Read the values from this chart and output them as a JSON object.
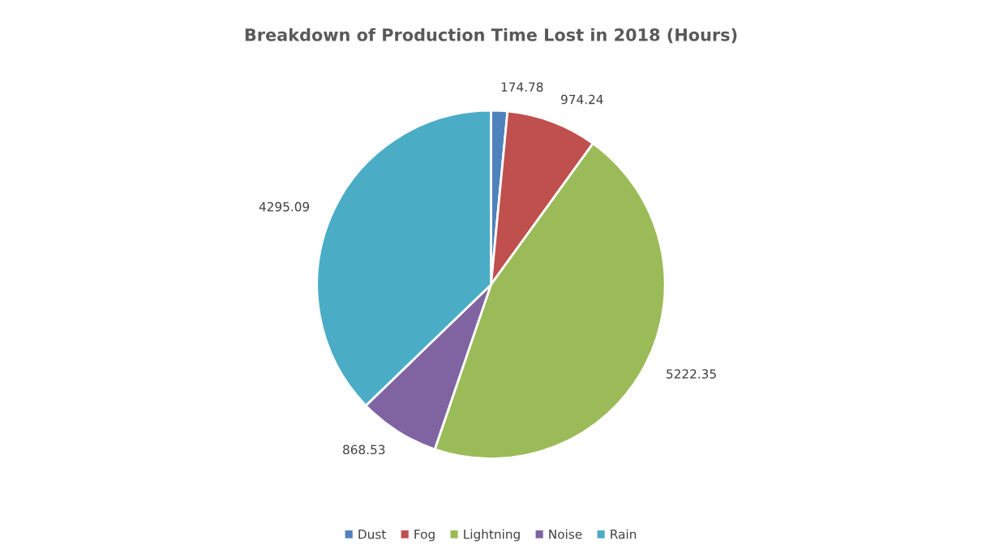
{
  "chart_data": {
    "type": "pie",
    "title": "Breakdown of Production Time Lost in 2018 (Hours)",
    "categories": [
      "Dust",
      "Fog",
      "Lightning",
      "Noise",
      "Rain"
    ],
    "values": [
      174.78,
      974.24,
      5222.35,
      868.53,
      4295.09
    ],
    "colors": [
      "#4f81bd",
      "#c0504d",
      "#9bbb59",
      "#8064a2",
      "#4bacc6"
    ],
    "data_labels": true,
    "legend": "bottom"
  }
}
